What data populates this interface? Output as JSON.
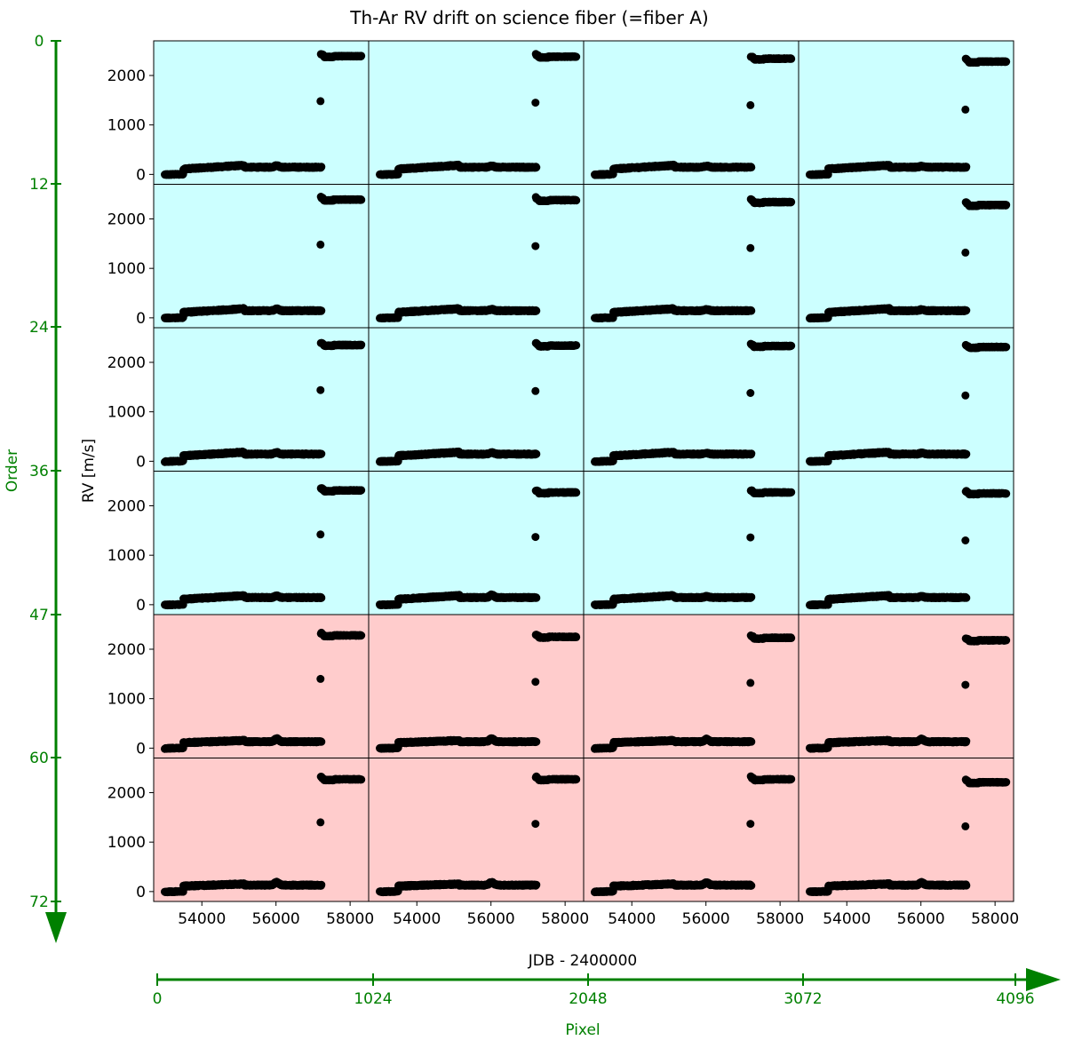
{
  "chart_data": {
    "type": "scatter",
    "title": "Th-Ar RV drift on science fiber (=fiber A)",
    "xlabel": "JDB - 2400000",
    "ylabel": "RV [m/s]",
    "xlim": [
      52700,
      58500
    ],
    "ylim": [
      -200,
      2700
    ],
    "xticks": [
      54000,
      56000,
      58000
    ],
    "yticks": [
      0,
      1000,
      2000
    ],
    "grid": false,
    "layout": "6 rows x 4 columns of panels, shared axes",
    "panel_colors": {
      "blue_rows": "#ccffff",
      "red_rows": "#ffcccc"
    },
    "rows": [
      {
        "color": "blue",
        "panels": [
          {
            "plateau": 2390,
            "outlier": 1480,
            "bump": 1
          },
          {
            "plateau": 2380,
            "outlier": 1450,
            "bump": 0.8
          },
          {
            "plateau": 2340,
            "outlier": 1400,
            "bump": 0.7
          },
          {
            "plateau": 2280,
            "outlier": 1310,
            "bump": 0.6
          }
        ]
      },
      {
        "color": "blue",
        "panels": [
          {
            "plateau": 2390,
            "outlier": 1480,
            "bump": 1
          },
          {
            "plateau": 2380,
            "outlier": 1450,
            "bump": 0.8
          },
          {
            "plateau": 2340,
            "outlier": 1410,
            "bump": 0.7
          },
          {
            "plateau": 2280,
            "outlier": 1320,
            "bump": 0.6
          }
        ]
      },
      {
        "color": "blue",
        "panels": [
          {
            "plateau": 2350,
            "outlier": 1440,
            "bump": 1
          },
          {
            "plateau": 2340,
            "outlier": 1420,
            "bump": 0.8
          },
          {
            "plateau": 2330,
            "outlier": 1380,
            "bump": 0.7
          },
          {
            "plateau": 2310,
            "outlier": 1330,
            "bump": 0.6
          }
        ]
      },
      {
        "color": "blue",
        "panels": [
          {
            "plateau": 2310,
            "outlier": 1420,
            "bump": 1
          },
          {
            "plateau": 2270,
            "outlier": 1370,
            "bump": 1.5
          },
          {
            "plateau": 2270,
            "outlier": 1360,
            "bump": 0.7
          },
          {
            "plateau": 2250,
            "outlier": 1300,
            "bump": 0.6
          }
        ]
      },
      {
        "color": "red",
        "panels": [
          {
            "plateau": 2280,
            "outlier": 1400,
            "bump": 1.8
          },
          {
            "plateau": 2250,
            "outlier": 1340,
            "bump": 1.8
          },
          {
            "plateau": 2230,
            "outlier": 1320,
            "bump": 1.5
          },
          {
            "plateau": 2180,
            "outlier": 1280,
            "bump": 1.5
          }
        ]
      },
      {
        "color": "red",
        "panels": [
          {
            "plateau": 2270,
            "outlier": 1400,
            "bump": 1.8
          },
          {
            "plateau": 2270,
            "outlier": 1370,
            "bump": 1.8
          },
          {
            "plateau": 2270,
            "outlier": 1370,
            "bump": 1.5
          },
          {
            "plateau": 2210,
            "outlier": 1320,
            "bump": 1.5
          }
        ]
      }
    ]
  },
  "order_axis": {
    "label": "Order",
    "ticks": [
      "0",
      "12",
      "24",
      "36",
      "47",
      "60",
      "72"
    ]
  },
  "pixel_axis": {
    "label": "Pixel",
    "ticks": [
      "0",
      "1024",
      "2048",
      "3072",
      "4096"
    ]
  },
  "colors": {
    "accent": "#008000",
    "blue_bg": "#ccffff",
    "red_bg": "#ffcccc",
    "points": "#000000"
  }
}
